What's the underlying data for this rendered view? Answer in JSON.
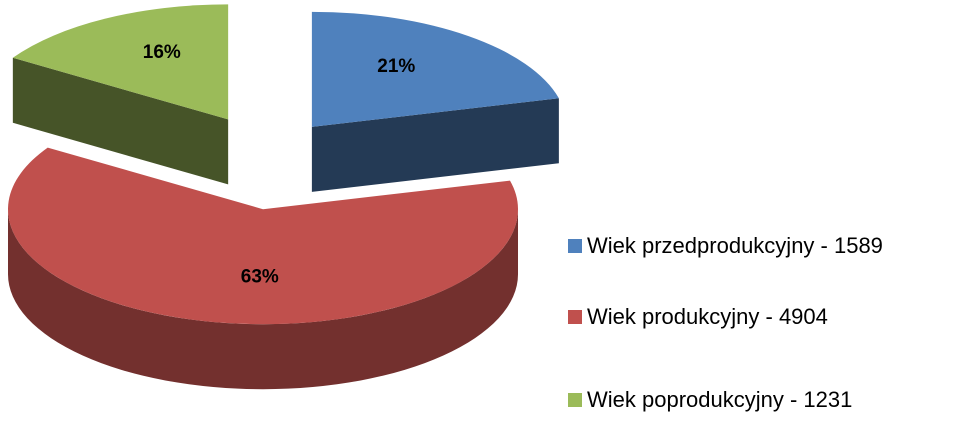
{
  "chart_data": {
    "type": "pie",
    "categories": [
      "Wiek przedprodukcyjny - 1589",
      "Wiek produkcyjny - 4904",
      "Wiek poprodukcyjny - 1231"
    ],
    "values": [
      21,
      63,
      16
    ],
    "value_labels": [
      "21%",
      "63%",
      "16%"
    ],
    "colors": [
      "#4f81bd",
      "#c0504d",
      "#9bbb59"
    ],
    "legend": "right"
  }
}
